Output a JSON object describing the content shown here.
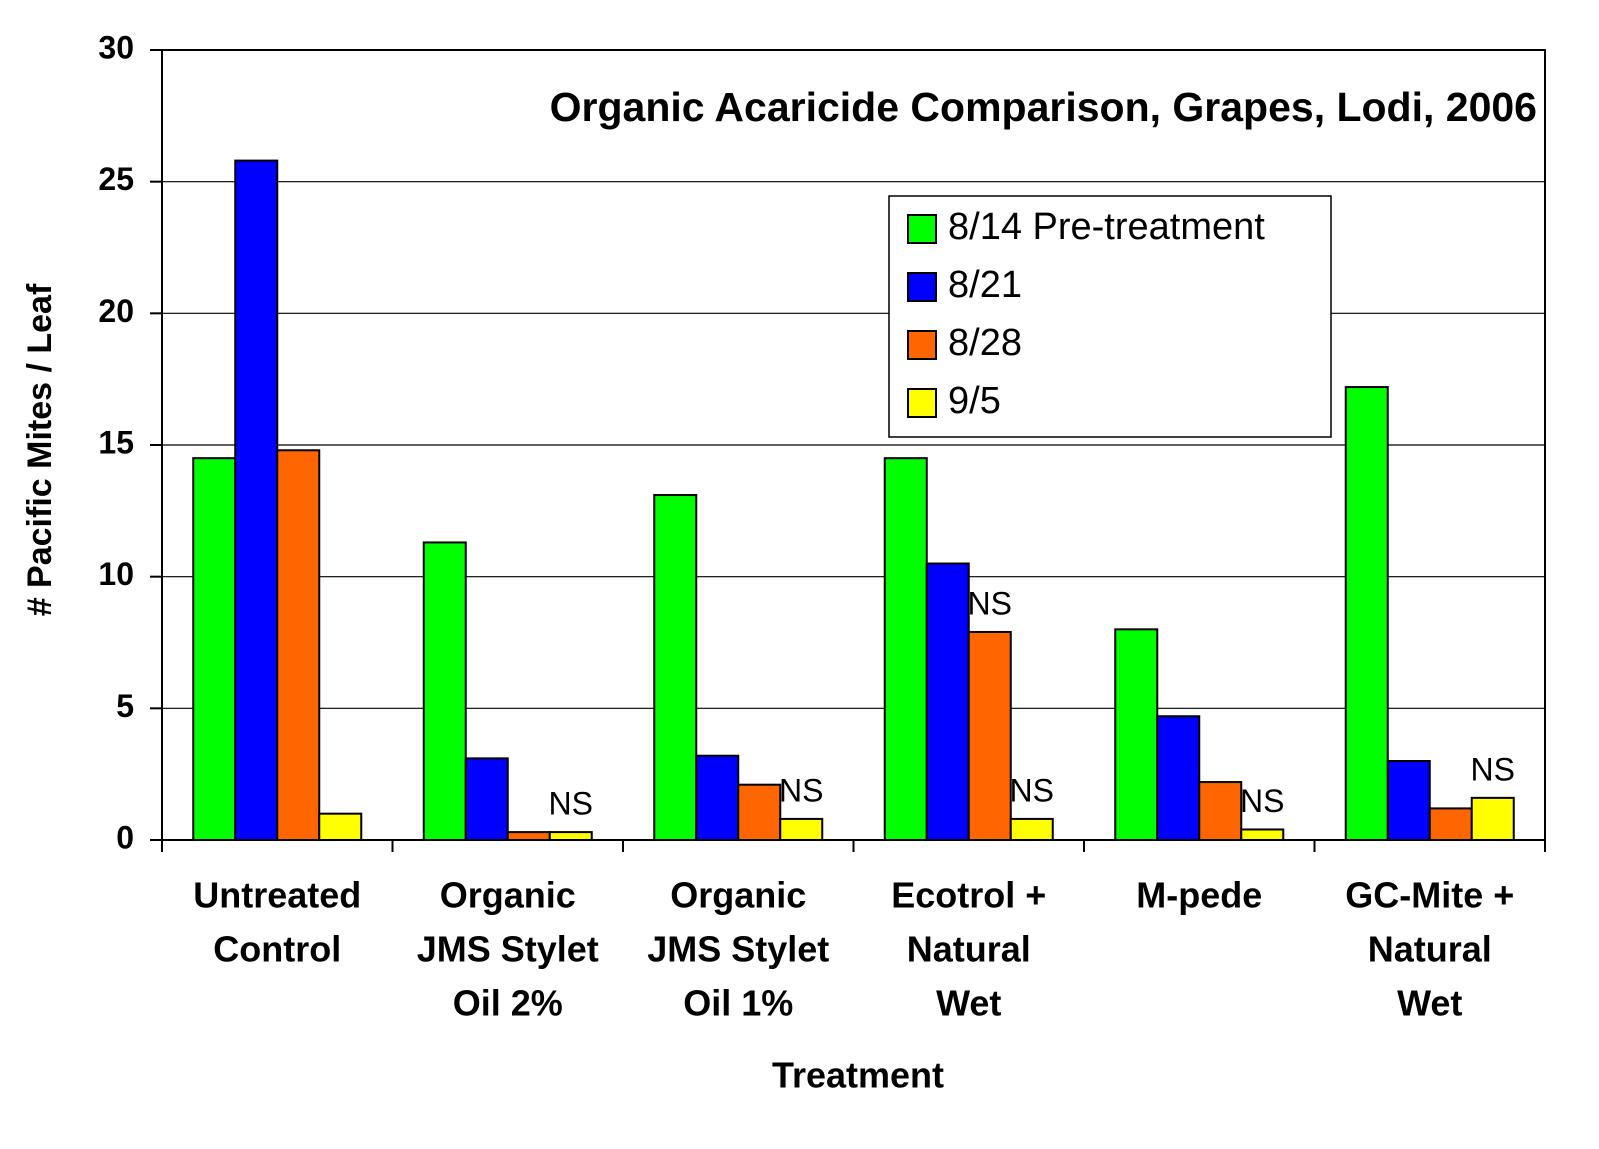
{
  "chart_data": {
    "type": "bar",
    "title": "Organic Acaricide Comparison, Grapes, Lodi, 2006",
    "x_label": "Treatment",
    "y_label": "# Pacific Mites / Leaf",
    "categories": [
      [
        "Untreated",
        "Control"
      ],
      [
        "Organic",
        "JMS Stylet",
        "Oil 2%"
      ],
      [
        "Organic",
        "JMS Stylet",
        "Oil 1%"
      ],
      [
        "Ecotrol +",
        "Natural",
        "Wet"
      ],
      [
        "M-pede"
      ],
      [
        "GC-Mite +",
        "Natural",
        "Wet"
      ]
    ],
    "series": [
      {
        "name": "8/14 Pre-treatment",
        "color": "#00ff00",
        "values": [
          14.5,
          11.3,
          13.1,
          14.5,
          8.0,
          17.2
        ]
      },
      {
        "name": "8/21",
        "color": "#0000ff",
        "values": [
          25.8,
          3.1,
          3.2,
          10.5,
          4.7,
          3.0
        ]
      },
      {
        "name": "8/28",
        "color": "#ff6600",
        "values": [
          14.8,
          0.3,
          2.1,
          7.9,
          2.2,
          1.2
        ],
        "value_labels": [
          null,
          null,
          null,
          "NS",
          null,
          null
        ]
      },
      {
        "name": "9/5",
        "color": "#ffff00",
        "values": [
          1.0,
          0.3,
          0.8,
          0.8,
          0.4,
          1.6
        ],
        "value_labels": [
          null,
          "NS",
          "NS",
          "NS",
          "NS",
          "NS"
        ]
      }
    ],
    "ylim": [
      0,
      30
    ],
    "yticks": [
      0,
      5,
      10,
      15,
      20,
      25,
      30
    ],
    "grid": true,
    "legend": "upper right"
  }
}
